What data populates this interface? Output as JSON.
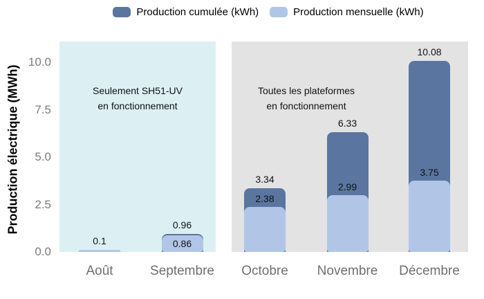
{
  "legend": {
    "items": [
      {
        "label": "Production cumulée (kWh)",
        "color": "#5a76a0"
      },
      {
        "label": "Production mensuelle (kWh)",
        "color": "#b1c6e7"
      }
    ]
  },
  "chart_data": {
    "type": "bar",
    "variant": "overlay-stacked-columns",
    "title": "",
    "xlabel": "",
    "ylabel": "Production électrique (MWh)",
    "ylim": [
      0,
      11.1
    ],
    "grid": false,
    "legend_position": "top-center",
    "yticks": [
      {
        "value": 0,
        "label": "0.0"
      },
      {
        "value": 2.5,
        "label": "2.5"
      },
      {
        "value": 5,
        "label": "5.0"
      },
      {
        "value": 7.5,
        "label": "7.5"
      },
      {
        "value": 10,
        "label": "10.0"
      }
    ],
    "categories": [
      "Août",
      "Septembre",
      "Octobre",
      "Novembre",
      "Décembre"
    ],
    "series": [
      {
        "name": "Production cumulée (kWh)",
        "color": "#5a76a0",
        "values": [
          0.1,
          0.96,
          3.34,
          6.33,
          10.08
        ],
        "labels": [
          "0.1",
          "0.96",
          "3.34",
          "6.33",
          "10.08"
        ]
      },
      {
        "name": "Production mensuelle (kWh)",
        "color": "#b1c6e7",
        "values": [
          0.1,
          0.86,
          2.38,
          2.99,
          3.75
        ],
        "labels": [
          "",
          "0.86",
          "2.38",
          "2.99",
          "3.75"
        ]
      }
    ],
    "panels": [
      {
        "color": "#dcf0f4",
        "categories": [
          "Août",
          "Septembre"
        ],
        "label_lines": [
          "Seulement SH51-UV",
          "en fonctionnement"
        ]
      },
      {
        "color": "#e3e3e3",
        "categories": [
          "Octobre",
          "Novembre",
          "Décembre"
        ],
        "label_lines": [
          "Toutes les plateformes",
          "en fonctionnement"
        ]
      }
    ]
  }
}
